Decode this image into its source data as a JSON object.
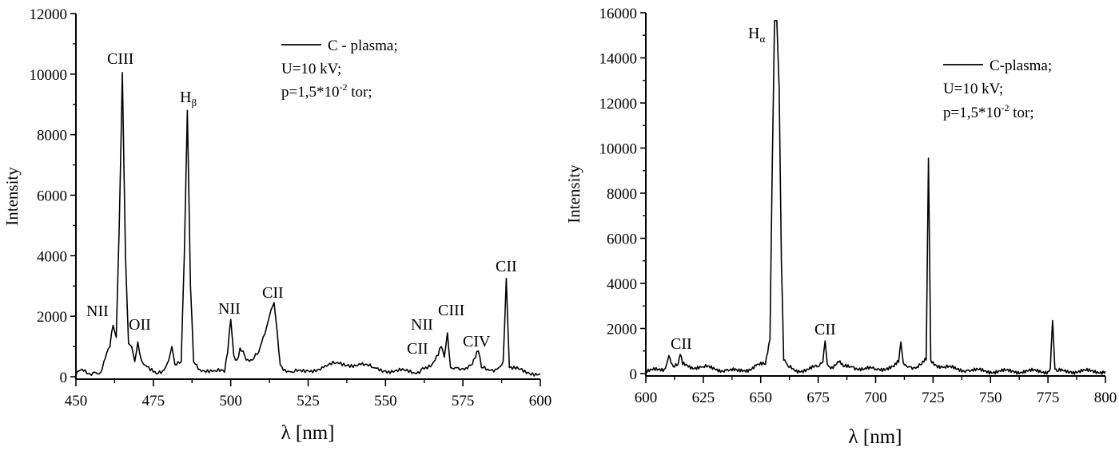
{
  "chart_data": [
    {
      "type": "line",
      "title": "",
      "xlabel": "λ [nm]",
      "ylabel": "Intensity",
      "xlim": [
        450,
        600
      ],
      "ylim": [
        0,
        12000
      ],
      "xticks": [
        450,
        475,
        500,
        525,
        550,
        575,
        600
      ],
      "yticks": [
        0,
        2000,
        4000,
        6000,
        8000,
        10000,
        12000
      ],
      "grid": false,
      "legend": {
        "position": "upper right",
        "entries": [
          "C - plasma;"
        ],
        "notes": [
          "U=10 kV;",
          "p=1,5*10^-2 tor;"
        ]
      },
      "series": [
        {
          "name": "C - plasma",
          "x": [
            450,
            452,
            454,
            456,
            458,
            459,
            460,
            461,
            462,
            463,
            464,
            465,
            466,
            467,
            468,
            469,
            470,
            471,
            472,
            474,
            476,
            478,
            480,
            481,
            482,
            484,
            485,
            486,
            487,
            488,
            490,
            495,
            498,
            499,
            500,
            501,
            502,
            503,
            504,
            505,
            507,
            509,
            511,
            513,
            514,
            515,
            516,
            518,
            520,
            525,
            530,
            534,
            538,
            542,
            546,
            550,
            555,
            560,
            562,
            565,
            567,
            568,
            569,
            570,
            571,
            573,
            576,
            578,
            580,
            581,
            583,
            586,
            588,
            589,
            590,
            591,
            593,
            596,
            600
          ],
          "values": [
            50,
            250,
            100,
            150,
            150,
            500,
            800,
            1000,
            1700,
            1300,
            5000,
            10050,
            4000,
            1100,
            1000,
            500,
            1150,
            600,
            400,
            200,
            100,
            200,
            550,
            1000,
            400,
            500,
            4000,
            8800,
            3000,
            500,
            250,
            200,
            150,
            800,
            1900,
            700,
            550,
            950,
            850,
            550,
            550,
            800,
            1400,
            2200,
            2450,
            1500,
            400,
            150,
            150,
            200,
            300,
            450,
            400,
            400,
            300,
            200,
            200,
            100,
            300,
            400,
            700,
            1000,
            650,
            1450,
            300,
            300,
            300,
            400,
            850,
            300,
            250,
            250,
            500,
            3250,
            300,
            250,
            250,
            150,
            100
          ]
        }
      ],
      "annotations": [
        {
          "text": "NII",
          "x": 461
        },
        {
          "text": "CIII",
          "x": 465
        },
        {
          "text": "OII",
          "x": 470
        },
        {
          "text": "Hβ",
          "x": 486
        },
        {
          "text": "NII",
          "x": 500
        },
        {
          "text": "CII",
          "x": 514
        },
        {
          "text": "NII",
          "x": 567
        },
        {
          "text": "CII",
          "x": 566
        },
        {
          "text": "CIII",
          "x": 570
        },
        {
          "text": "CIV",
          "x": 580
        },
        {
          "text": "CII",
          "x": 589
        }
      ]
    },
    {
      "type": "line",
      "title": "",
      "xlabel": "λ [nm]",
      "ylabel": "Intensity",
      "xlim": [
        600,
        800
      ],
      "ylim": [
        0,
        16000
      ],
      "xticks": [
        600,
        625,
        650,
        675,
        700,
        725,
        750,
        775,
        800
      ],
      "yticks": [
        0,
        2000,
        4000,
        6000,
        8000,
        10000,
        12000,
        14000,
        16000
      ],
      "grid": false,
      "legend": {
        "position": "upper right",
        "entries": [
          "C-plasma;"
        ],
        "notes": [
          "U=10 kV;",
          "p=1,5*10^-2 tor;"
        ]
      },
      "series": [
        {
          "name": "C-plasma",
          "x": [
            600,
            605,
            608,
            609,
            610,
            612,
            614,
            615,
            616,
            620,
            625,
            630,
            635,
            640,
            645,
            648,
            652,
            654,
            655,
            656,
            657,
            658,
            659,
            660,
            662,
            665,
            670,
            675,
            677,
            678,
            679,
            681,
            684,
            686,
            690,
            695,
            700,
            705,
            708,
            710,
            711,
            712,
            713,
            715,
            718,
            720,
            722,
            723,
            724,
            726,
            730,
            735,
            740,
            750,
            760,
            770,
            775,
            776,
            777,
            778,
            779,
            785,
            790,
            800
          ],
          "values": [
            100,
            150,
            200,
            400,
            800,
            300,
            400,
            850,
            400,
            300,
            300,
            200,
            150,
            100,
            200,
            350,
            400,
            1500,
            9000,
            15650,
            15650,
            12700,
            5000,
            600,
            300,
            100,
            200,
            300,
            500,
            1450,
            400,
            300,
            500,
            300,
            300,
            200,
            200,
            250,
            300,
            500,
            1400,
            500,
            400,
            300,
            300,
            400,
            600,
            9550,
            600,
            400,
            300,
            200,
            150,
            100,
            100,
            100,
            100,
            200,
            2350,
            200,
            100,
            100,
            100,
            100
          ]
        }
      ],
      "annotations": [
        {
          "text": "CII",
          "x": 614
        },
        {
          "text": "Hα",
          "x": 656
        },
        {
          "text": "CII",
          "x": 678
        }
      ]
    }
  ],
  "left": {
    "ylabel": "Intensity",
    "xlabel": "λ [nm]",
    "legend_series": "C - plasma;",
    "legend_line2": "U=10 kV;",
    "legend_line3_pre": "p=1,5*10",
    "legend_line3_sup": "-2",
    "legend_line3_post": " tor;",
    "yticks": [
      "0",
      "2000",
      "4000",
      "6000",
      "8000",
      "10000",
      "12000"
    ],
    "xticks": [
      "450",
      "475",
      "500",
      "525",
      "550",
      "575",
      "600"
    ],
    "peaks": {
      "nii_1": "NII",
      "ciii_1": "CIII",
      "oii": "OII",
      "hbeta_base": "H",
      "hbeta_sub": "β",
      "nii_2": "NII",
      "cii_1": "CII",
      "nii_3": "NII",
      "cii_2": "CII",
      "ciii_2": "CIII",
      "civ": "CIV",
      "cii_3": "CII"
    }
  },
  "right": {
    "ylabel": "Intensity",
    "xlabel": "λ [nm]",
    "legend_series": "C-plasma;",
    "legend_line2": "U=10 kV;",
    "legend_line3_pre": "p=1,5*10",
    "legend_line3_sup": "-2",
    "legend_line3_post": " tor;",
    "yticks": [
      "0",
      "2000",
      "4000",
      "6000",
      "8000",
      "10000",
      "12000",
      "14000",
      "16000"
    ],
    "xticks": [
      "600",
      "625",
      "650",
      "675",
      "700",
      "725",
      "750",
      "775",
      "800"
    ],
    "peaks": {
      "cii_1": "CII",
      "halpha_base": "H",
      "halpha_sub": "α",
      "cii_2": "CII"
    }
  },
  "colors": {
    "line": "#000000",
    "background": "#ffffff"
  }
}
